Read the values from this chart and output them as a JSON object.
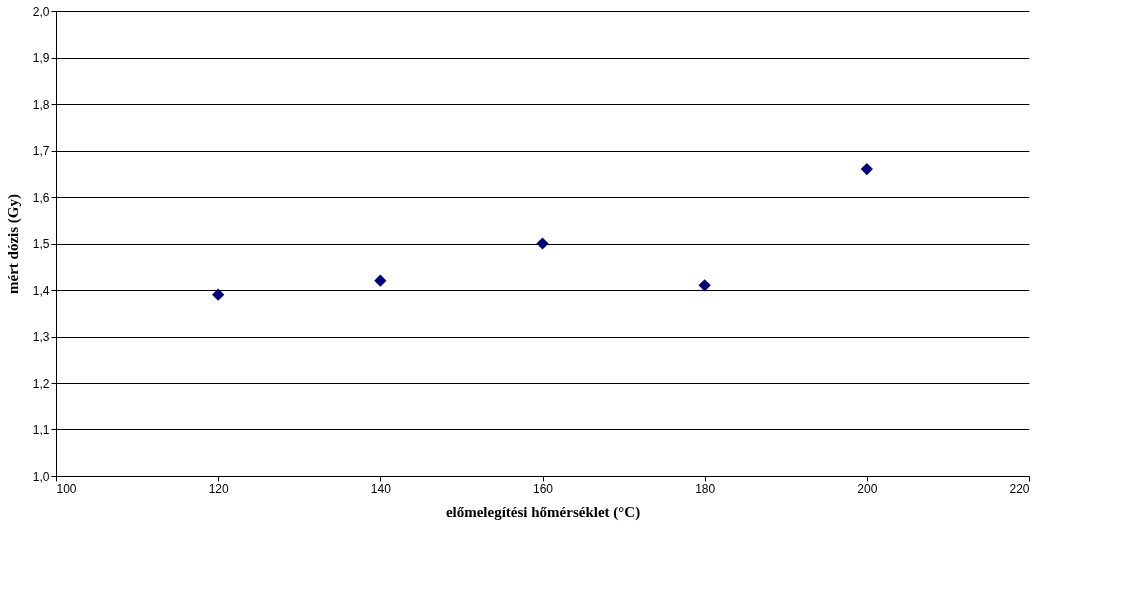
{
  "chart_data": {
    "type": "scatter",
    "xlabel": "előmelegítési hőmérséklet (°C)",
    "ylabel": "mért dózis (Gy)",
    "x": [
      120,
      140,
      160,
      180,
      200
    ],
    "series": [
      {
        "color": "#000080",
        "values": [
          1.39,
          1.42,
          1.5,
          1.41,
          1.66
        ]
      }
    ],
    "xlim": [
      100,
      220
    ],
    "xticks": [
      100,
      120,
      140,
      160,
      180,
      200,
      220
    ],
    "ylim": [
      1.0,
      2.0
    ],
    "yticks": [
      {
        "value": 1.0,
        "label": "1,0"
      },
      {
        "value": 1.1,
        "label": "1,1"
      },
      {
        "value": 1.2,
        "label": "1,2"
      },
      {
        "value": 1.3,
        "label": "1,3"
      },
      {
        "value": 1.4,
        "label": "1,4"
      },
      {
        "value": 1.5,
        "label": "1,5"
      },
      {
        "value": 1.6,
        "label": "1,6"
      },
      {
        "value": 1.7,
        "label": "1,7"
      },
      {
        "value": 1.8,
        "label": "1,8"
      },
      {
        "value": 1.9,
        "label": "1,9"
      },
      {
        "value": 2.0,
        "label": "2,0"
      }
    ],
    "grid": "y",
    "marker": "diamond",
    "legend": false
  }
}
